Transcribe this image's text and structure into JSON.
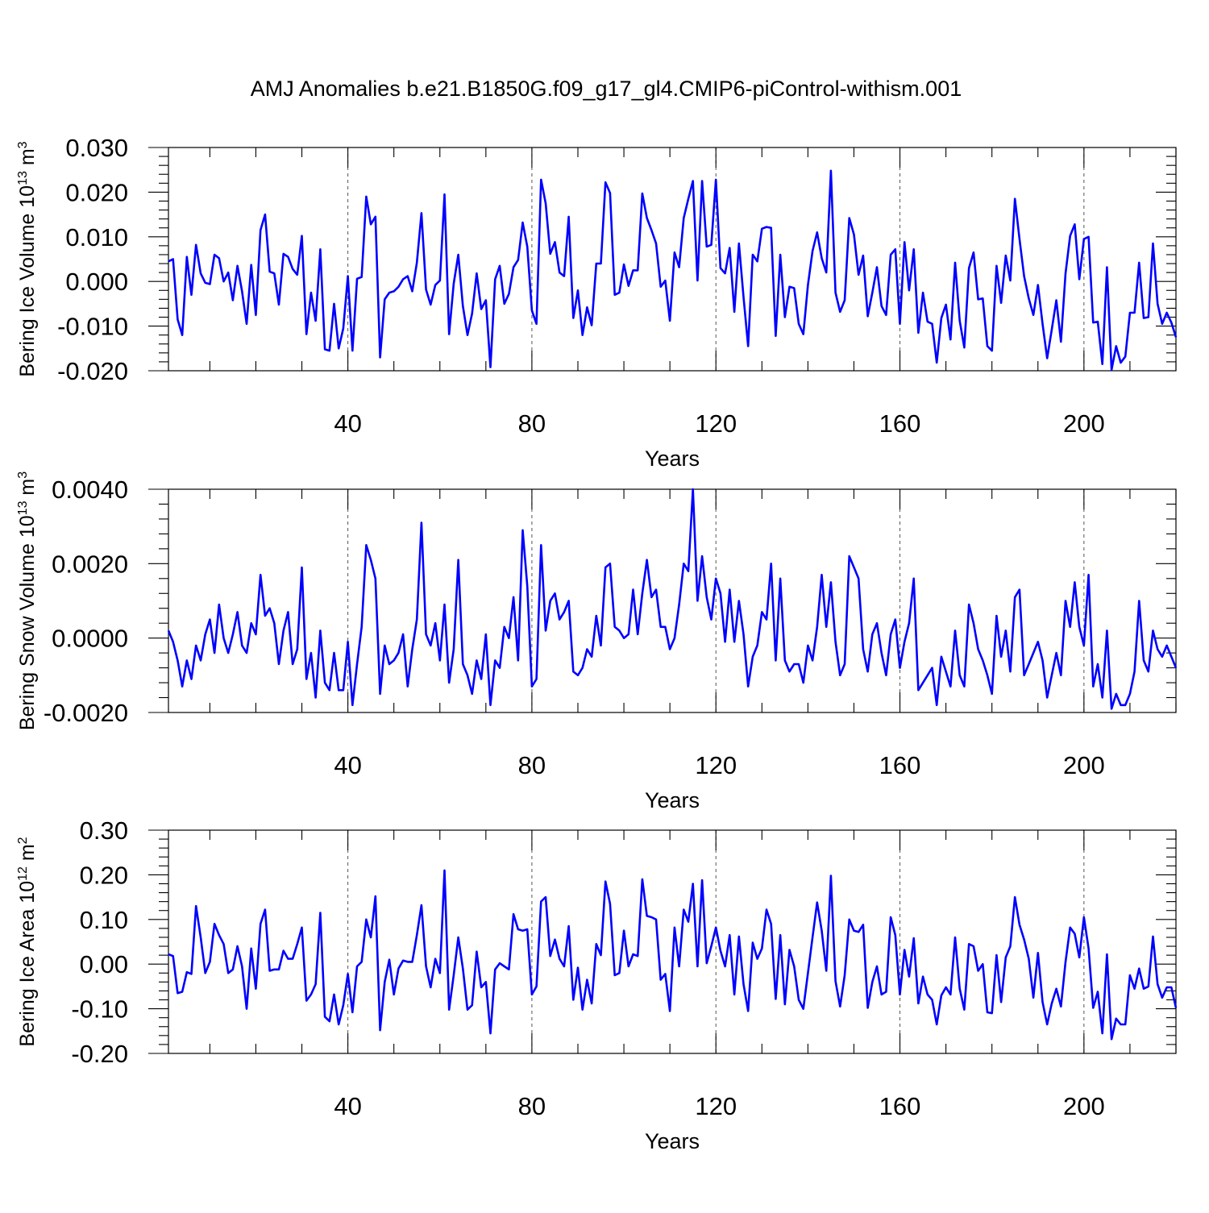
{
  "title": "AMJ Anomalies b.e21.B1850G.f09_g17_gl4.CMIP6-piControl-withism.001",
  "chart_data": [
    {
      "type": "line",
      "title": "",
      "xlabel": "Years",
      "ylabel": "Bering Ice Volume 10",
      "ylabel_sup": "13",
      "ylabel_unit": "m",
      "ylabel_unit_sup": "3",
      "xlim": [
        1,
        220
      ],
      "ylim": [
        -0.02,
        0.03
      ],
      "x_ticks": [
        40,
        80,
        120,
        160,
        200
      ],
      "x_tick_labels": [
        "40",
        "80",
        "120",
        "160",
        "200"
      ],
      "y_ticks": [
        -0.02,
        -0.01,
        0.0,
        0.01,
        0.02,
        0.03
      ],
      "y_tick_labels": [
        "-0.020",
        "-0.010",
        "0.000",
        "0.010",
        "0.020",
        "0.030"
      ],
      "grid_x": [
        40,
        80,
        120,
        160,
        200
      ],
      "series": [
        {
          "name": "Bering Ice Volume",
          "color": "#0000ff",
          "values": [
            0.0045,
            0.005,
            -0.0085,
            -0.012,
            0.0055,
            -0.003,
            0.0082,
            0.0018,
            -0.0003,
            -0.0006,
            0.006,
            0.0052,
            0.0,
            0.002,
            -0.0042,
            0.0035,
            -0.0022,
            -0.0095,
            0.0037,
            -0.0075,
            0.0115,
            0.015,
            0.0022,
            0.0018,
            -0.0052,
            0.0062,
            0.0055,
            0.0028,
            0.0015,
            0.0102,
            -0.0118,
            -0.0025,
            -0.0088,
            0.0072,
            -0.0152,
            -0.0155,
            -0.005,
            -0.015,
            -0.0105,
            0.0012,
            -0.0155,
            0.0006,
            0.001,
            0.019,
            0.0128,
            0.0145,
            -0.017,
            -0.004,
            -0.0025,
            -0.0022,
            -0.0012,
            0.0005,
            0.0012,
            -0.0022,
            0.0042,
            0.0153,
            -0.0018,
            -0.0052,
            -0.0008,
            0.0002,
            0.0195,
            -0.0118,
            -0.0005,
            0.006,
            -0.0055,
            -0.012,
            -0.0072,
            0.0018,
            -0.0062,
            -0.0042,
            -0.0192,
            0.0005,
            0.0035,
            -0.005,
            -0.0028,
            0.0032,
            0.0048,
            0.0132,
            0.0078,
            -0.0065,
            -0.0095,
            0.0228,
            0.0175,
            0.0062,
            0.0088,
            0.002,
            0.0012,
            0.0145,
            -0.0082,
            -0.002,
            -0.012,
            -0.0058,
            -0.0098,
            0.004,
            0.004,
            0.0222,
            0.0198,
            -0.003,
            -0.0025,
            0.0038,
            -0.001,
            0.0025,
            0.0025,
            0.0197,
            0.0142,
            0.0115,
            0.0085,
            -0.0012,
            0.0002,
            -0.0088,
            0.0065,
            0.0032,
            0.0142,
            0.0185,
            0.0225,
            0.0002,
            0.0225,
            0.0078,
            0.0082,
            0.0228,
            0.003,
            0.0018,
            0.0075,
            -0.0068,
            0.0085,
            -0.0035,
            -0.0145,
            0.006,
            0.0045,
            0.0118,
            0.0122,
            0.012,
            -0.0122,
            0.006,
            -0.008,
            -0.0012,
            -0.0015,
            -0.0095,
            -0.0118,
            -0.0008,
            0.0068,
            0.011,
            0.0052,
            0.002,
            0.0248,
            -0.0025,
            -0.0068,
            -0.0042,
            0.0142,
            0.0105,
            0.0015,
            0.0058,
            -0.0078,
            -0.0025,
            0.0032,
            -0.0055,
            -0.0075,
            0.006,
            0.0072,
            -0.0095,
            0.0088,
            -0.002,
            0.0072,
            -0.0115,
            -0.0025,
            -0.009,
            -0.0095,
            -0.0182,
            -0.0082,
            -0.0052,
            -0.013,
            0.0042,
            -0.0088,
            -0.0148,
            0.003,
            0.0065,
            -0.004,
            -0.0038,
            -0.0145,
            -0.0155,
            0.0035,
            -0.0048,
            0.0058,
            0.0002,
            0.0185,
            0.0095,
            0.0012,
            -0.0038,
            -0.0075,
            -0.0008,
            -0.0095,
            -0.0172,
            -0.0108,
            -0.0042,
            -0.0135,
            0.0018,
            0.0102,
            0.0128,
            0.0005,
            0.0095,
            0.01,
            -0.0092,
            -0.009,
            -0.0185,
            0.0032,
            -0.0198,
            -0.0145,
            -0.0182,
            -0.0168,
            -0.007,
            -0.007,
            0.0042,
            -0.0082,
            -0.008,
            0.0085,
            -0.005,
            -0.0095,
            -0.007,
            -0.0092,
            -0.0125
          ]
        }
      ]
    },
    {
      "type": "line",
      "title": "",
      "xlabel": "Years",
      "ylabel": "Bering Snow Volume 10",
      "ylabel_sup": "13",
      "ylabel_unit": "m",
      "ylabel_unit_sup": "3",
      "xlim": [
        1,
        220
      ],
      "ylim": [
        -0.002,
        0.004
      ],
      "x_ticks": [
        40,
        80,
        120,
        160,
        200
      ],
      "x_tick_labels": [
        "40",
        "80",
        "120",
        "160",
        "200"
      ],
      "y_ticks": [
        -0.002,
        0.0,
        0.002,
        0.004
      ],
      "y_tick_labels": [
        "-0.0020",
        "0.0000",
        "0.0020",
        "0.0040"
      ],
      "grid_x": [
        40,
        80,
        120,
        160,
        200
      ],
      "series": [
        {
          "name": "Bering Snow Volume",
          "color": "#0000ff",
          "values": [
            0.0002,
            -0.0001,
            -0.0006,
            -0.0013,
            -0.0006,
            -0.0011,
            -0.0002,
            -0.0006,
            0.0001,
            0.0005,
            -0.0004,
            0.0009,
            0.0,
            -0.0004,
            0.0001,
            0.0007,
            -0.0002,
            -0.0004,
            0.0004,
            0.0001,
            0.0017,
            0.0006,
            0.0008,
            0.0004,
            -0.0007,
            0.0002,
            0.0007,
            -0.0007,
            -0.0003,
            0.0019,
            -0.0011,
            -0.0004,
            -0.0016,
            0.0002,
            -0.0012,
            -0.0014,
            -0.0004,
            -0.0014,
            -0.0014,
            -0.0001,
            -0.0018,
            -0.0007,
            0.0003,
            0.0025,
            0.0021,
            0.0016,
            -0.0015,
            -0.0002,
            -0.0007,
            -0.0006,
            -0.0004,
            0.0001,
            -0.0013,
            -0.0003,
            0.0005,
            0.0031,
            0.0001,
            -0.0002,
            0.0004,
            -0.0006,
            0.0009,
            -0.0012,
            -0.0003,
            0.0021,
            -0.0007,
            -0.001,
            -0.0015,
            -0.0006,
            -0.0011,
            0.0001,
            -0.0018,
            -0.0006,
            -0.0008,
            0.0003,
            0.0,
            0.0011,
            -0.0006,
            0.0029,
            0.0014,
            -0.0013,
            -0.0011,
            0.0025,
            0.0002,
            0.001,
            0.0012,
            0.0005,
            0.0007,
            0.001,
            -0.0009,
            -0.001,
            -0.0008,
            -0.0003,
            -0.0005,
            0.0006,
            -0.0002,
            0.0019,
            0.002,
            0.0003,
            0.0002,
            0.0,
            0.0001,
            0.0013,
            0.0001,
            0.0012,
            0.0021,
            0.0011,
            0.0013,
            0.0003,
            0.0003,
            -0.0003,
            0.0,
            0.0009,
            0.002,
            0.0018,
            0.004,
            0.001,
            0.0022,
            0.0011,
            0.0005,
            0.0016,
            0.0012,
            -0.0001,
            0.0013,
            -0.0001,
            0.001,
            0.0001,
            -0.0013,
            -0.0005,
            -0.0002,
            0.0007,
            0.0005,
            0.002,
            -0.0006,
            0.0016,
            -0.0006,
            -0.0009,
            -0.0007,
            -0.0007,
            -0.0012,
            -0.0002,
            -0.0006,
            0.0003,
            0.0017,
            0.0003,
            0.0015,
            -0.0001,
            -0.001,
            -0.0007,
            0.0022,
            0.0019,
            0.0016,
            -0.0003,
            -0.0009,
            0.0001,
            0.0004,
            -0.0004,
            -0.001,
            0.0001,
            0.0005,
            -0.0008,
            -0.0001,
            0.0004,
            0.0016,
            -0.0014,
            -0.0012,
            -0.001,
            -0.0008,
            -0.0018,
            -0.0005,
            -0.0009,
            -0.0013,
            0.0002,
            -0.001,
            -0.0013,
            0.0009,
            0.0004,
            -0.0003,
            -0.0006,
            -0.001,
            -0.0015,
            0.0006,
            -0.0005,
            0.0002,
            -0.0009,
            0.0011,
            0.0013,
            -0.001,
            -0.0007,
            -0.0004,
            -0.0001,
            -0.0006,
            -0.0016,
            -0.001,
            -0.0004,
            -0.001,
            0.001,
            0.0003,
            0.0015,
            0.0003,
            -0.0002,
            0.0017,
            -0.0013,
            -0.0007,
            -0.0016,
            0.0002,
            -0.0019,
            -0.0015,
            -0.0018,
            -0.0018,
            -0.0015,
            -0.0009,
            0.001,
            -0.0006,
            -0.0009,
            0.0002,
            -0.0003,
            -0.0005,
            -0.0002,
            -0.0005,
            -0.0008
          ]
        }
      ]
    },
    {
      "type": "line",
      "title": "",
      "xlabel": "Years",
      "ylabel": "Bering Ice Area 10",
      "ylabel_sup": "12",
      "ylabel_unit": "m",
      "ylabel_unit_sup": "2",
      "xlim": [
        1,
        220
      ],
      "ylim": [
        -0.2,
        0.3
      ],
      "x_ticks": [
        40,
        80,
        120,
        160,
        200
      ],
      "x_tick_labels": [
        "40",
        "80",
        "120",
        "160",
        "200"
      ],
      "y_ticks": [
        -0.2,
        -0.1,
        0.0,
        0.1,
        0.2,
        0.3
      ],
      "y_tick_labels": [
        "-0.20",
        "-0.10",
        "0.00",
        "0.10",
        "0.20",
        "0.30"
      ],
      "grid_x": [
        40,
        80,
        120,
        160,
        200
      ],
      "series": [
        {
          "name": "Bering Ice Area",
          "color": "#0000ff",
          "values": [
            0.022,
            0.018,
            -0.065,
            -0.062,
            -0.018,
            -0.022,
            0.13,
            0.06,
            -0.02,
            0.005,
            0.09,
            0.065,
            0.045,
            -0.02,
            -0.012,
            0.04,
            -0.005,
            -0.1,
            0.035,
            -0.055,
            0.09,
            0.122,
            -0.015,
            -0.012,
            -0.012,
            0.03,
            0.012,
            0.012,
            0.045,
            0.082,
            -0.082,
            -0.068,
            -0.045,
            0.115,
            -0.118,
            -0.128,
            -0.068,
            -0.135,
            -0.092,
            -0.022,
            -0.108,
            -0.005,
            0.005,
            0.1,
            0.06,
            0.152,
            -0.148,
            -0.04,
            0.01,
            -0.068,
            -0.01,
            0.008,
            0.005,
            0.005,
            0.065,
            0.132,
            -0.005,
            -0.052,
            0.012,
            -0.02,
            0.21,
            -0.102,
            -0.025,
            0.06,
            -0.01,
            -0.102,
            -0.092,
            0.028,
            -0.052,
            -0.04,
            -0.155,
            -0.012,
            0.002,
            -0.005,
            -0.012,
            0.112,
            0.078,
            0.075,
            0.078,
            -0.068,
            -0.05,
            0.14,
            0.15,
            0.018,
            0.055,
            0.012,
            -0.005,
            0.085,
            -0.08,
            -0.008,
            -0.102,
            -0.035,
            -0.088,
            0.045,
            0.02,
            0.185,
            0.135,
            -0.025,
            -0.02,
            0.075,
            -0.005,
            0.022,
            0.018,
            0.19,
            0.108,
            0.105,
            0.1,
            -0.035,
            -0.022,
            -0.105,
            0.082,
            -0.005,
            0.122,
            0.095,
            0.18,
            -0.005,
            0.188,
            0.002,
            0.04,
            0.082,
            0.03,
            -0.005,
            0.065,
            -0.068,
            0.062,
            -0.045,
            -0.105,
            0.048,
            0.012,
            0.035,
            0.122,
            0.09,
            -0.078,
            0.065,
            -0.09,
            0.032,
            -0.005,
            -0.08,
            -0.1,
            -0.02,
            0.06,
            0.138,
            0.075,
            -0.015,
            0.198,
            -0.038,
            -0.095,
            -0.025,
            0.1,
            0.075,
            0.072,
            0.088,
            -0.098,
            -0.04,
            -0.005,
            -0.068,
            -0.062,
            0.105,
            0.065,
            -0.068,
            0.032,
            -0.028,
            0.058,
            -0.088,
            -0.028,
            -0.068,
            -0.08,
            -0.135,
            -0.07,
            -0.052,
            -0.068,
            0.06,
            -0.055,
            -0.102,
            0.045,
            0.04,
            -0.015,
            0.0,
            -0.108,
            -0.11,
            0.02,
            -0.085,
            0.015,
            0.04,
            0.15,
            0.088,
            0.055,
            0.012,
            -0.075,
            0.025,
            -0.085,
            -0.135,
            -0.088,
            -0.055,
            -0.095,
            0.005,
            0.082,
            0.068,
            0.015,
            0.105,
            0.035,
            -0.098,
            -0.062,
            -0.155,
            0.022,
            -0.168,
            -0.122,
            -0.135,
            -0.135,
            -0.025,
            -0.055,
            -0.01,
            -0.055,
            -0.05,
            0.062,
            -0.045,
            -0.075,
            -0.052,
            -0.052,
            -0.098
          ]
        }
      ]
    }
  ]
}
